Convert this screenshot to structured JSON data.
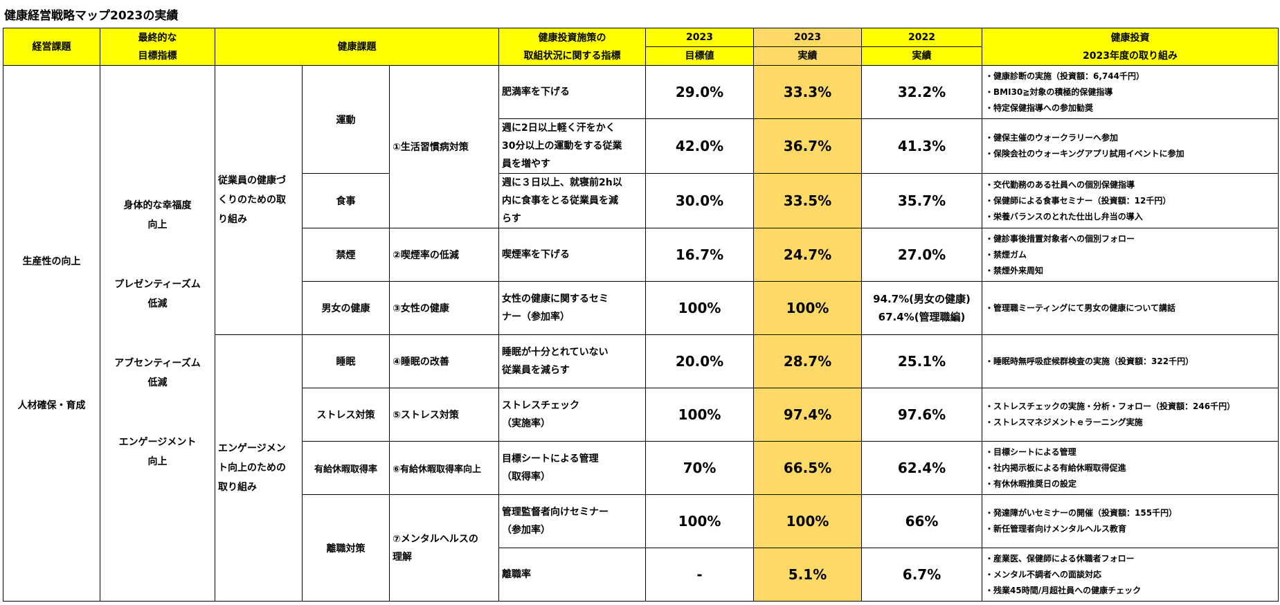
{
  "title": "健康経営戦略マップ2023の実績",
  "headers": {
    "keiei": "経営課題",
    "saishu_1": "最終的な",
    "saishu_2": "目標指標",
    "kenko_kadai": "健康課題",
    "shisaku_1": "健康投資施策の",
    "shisaku_2": "取組状況に関する指標",
    "y2023a": "2023",
    "mokuhyo": "目標値",
    "y2023b": "2023",
    "jisseki1": "実績",
    "y2022": "2022",
    "jisseki2": "実績",
    "toshi_1": "健康投資",
    "toshi_2": "2023年度の取り組み"
  },
  "keiei": [
    "生産性の向上",
    "人材確保・育成"
  ],
  "saishu": [
    [
      "身体的な幸福度",
      "向上"
    ],
    [
      "プレゼンティーズム",
      "低減"
    ],
    [
      "アブセンティーズム",
      "低減"
    ],
    [
      "エンゲージメント",
      "向上"
    ]
  ],
  "groups": [
    {
      "label": [
        "従業員の健康づ",
        "くりのための取",
        "り組み"
      ]
    },
    {
      "label": [
        "エンゲージメン",
        "ト向上のための",
        "取り組み"
      ]
    }
  ],
  "categories": {
    "undo": "運動",
    "shokuji": "食事",
    "kinen": "禁煙",
    "danjo": "男女の健康",
    "suimin": "睡眠",
    "stress": "ストレス対策",
    "yukyu": "有給休暇取得率",
    "rishoku": "離職対策"
  },
  "measures": {
    "m1": "①生活習慣病対策",
    "m2": "②喫煙率の低減",
    "m3": "③女性の健康",
    "m4": "④睡眠の改善",
    "m5": "⑤ストレス対策",
    "m6": "⑥有給休暇取得率向上",
    "m7": [
      "⑦メンタルヘルスの",
      "理解"
    ]
  },
  "rows": [
    {
      "indicator": [
        "肥満率を下げる"
      ],
      "target": "29.0%",
      "actual2023": "33.3%",
      "actual2022": [
        "32.2%"
      ],
      "actions": [
        "・健康診断の実施（投資額：6,744千円）",
        "・BMI30≧対象の積極的保健指導",
        "・特定保健指導への参加勧奨"
      ]
    },
    {
      "indicator": [
        "週に2日以上軽く汗をかく",
        "30分以上の運動をする従業",
        "員を増やす"
      ],
      "target": "42.0%",
      "actual2023": "36.7%",
      "actual2022": [
        "41.3%"
      ],
      "actions": [
        "・健保主催のウォークラリーへ参加",
        "・保険会社のウォーキングアプリ試用イベントに参加"
      ]
    },
    {
      "indicator": [
        "週に３日以上、就寝前2h以",
        "内に食事をとる従業員を減",
        "らす"
      ],
      "target": "30.0%",
      "actual2023": "33.5%",
      "actual2022": [
        "35.7%"
      ],
      "actions": [
        "・交代勤務のある社員への個別保健指導",
        "・保健師による食事セミナー（投資額：12千円）",
        "・栄養バランスのとれた仕出し弁当の導入"
      ]
    },
    {
      "indicator": [
        "喫煙率を下げる"
      ],
      "target": "16.7%",
      "actual2023": "24.7%",
      "actual2022": [
        "27.0%"
      ],
      "actions": [
        "・健診事後措置対象者への個別フォロー",
        "・禁煙ガム",
        "・禁煙外来周知"
      ]
    },
    {
      "indicator": [
        "女性の健康に関するセミ",
        "ナー（参加率）"
      ],
      "target": "100%",
      "actual2023": "100%",
      "actual2022": [
        "94.7%(男女の健康)",
        "67.4%(管理職編)"
      ],
      "actions": [
        "・管理職ミーティングにて男女の健康について講話"
      ]
    },
    {
      "indicator": [
        "睡眠が十分とれていない",
        "従業員を減らす"
      ],
      "target": "20.0%",
      "actual2023": "28.7%",
      "actual2022": [
        "25.1%"
      ],
      "actions": [
        "・睡眠時無呼吸症候群検査の実施（投資額：322千円）"
      ]
    },
    {
      "indicator": [
        "ストレスチェック",
        "（実施率）"
      ],
      "target": "100%",
      "actual2023": "97.4%",
      "actual2022": [
        "97.6%"
      ],
      "actions": [
        "・ストレスチェックの実施・分析・フォロー（投資額：246千円）",
        "・ストレスマネジメントｅラーニング実施"
      ]
    },
    {
      "indicator": [
        "目標シートによる管理",
        "（取得率）"
      ],
      "target": "70%",
      "actual2023": "66.5%",
      "actual2022": [
        "62.4%"
      ],
      "actions": [
        "・目標シートによる管理",
        "・社内掲示板による有給休暇取得促進",
        "・有休休暇推奨日の設定"
      ]
    },
    {
      "indicator": [
        "管理監督者向けセミナー",
        "（参加率）"
      ],
      "target": "100%",
      "actual2023": "100%",
      "actual2022": [
        "66%"
      ],
      "actions": [
        "・発達障がいセミナーの開催（投資額：155千円）",
        "・新任管理者向けメンタルヘルス教育"
      ]
    },
    {
      "indicator": [
        "離職率"
      ],
      "target": "-",
      "actual2023": "5.1%",
      "actual2022": [
        "6.7%"
      ],
      "actions": [
        "・産業医、保健師による休職者フォロー",
        "・メンタル不調者への面談対応",
        "・残業45時間/月超社員への健康チェック"
      ]
    }
  ],
  "colors": {
    "header": "#ffff00",
    "highlight": "#ffd966"
  }
}
